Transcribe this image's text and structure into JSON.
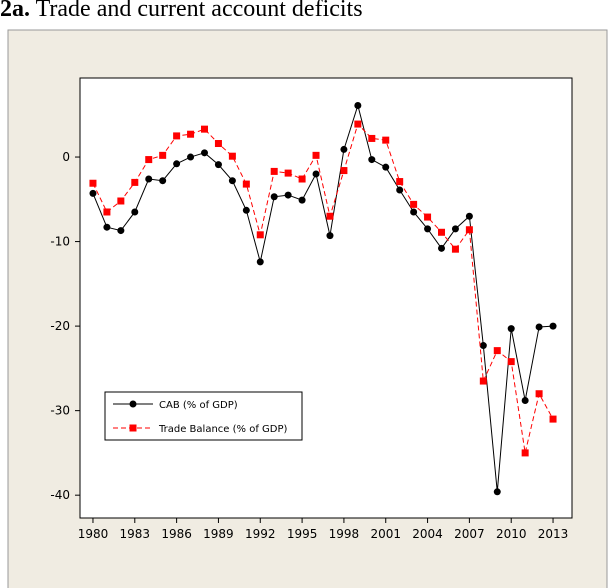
{
  "chart_data": {
    "type": "line",
    "title_prefix": "2a.",
    "title": "Trade and current account deficits",
    "x": [
      1980,
      1981,
      1982,
      1983,
      1984,
      1985,
      1986,
      1987,
      1988,
      1989,
      1990,
      1991,
      1992,
      1993,
      1994,
      1995,
      1996,
      1997,
      1998,
      1999,
      2000,
      2001,
      2002,
      2003,
      2004,
      2005,
      2006,
      2007,
      2008,
      2009,
      2010,
      2011,
      2012,
      2013
    ],
    "series": [
      {
        "name": "CAB (% of GDP)",
        "color": "#000000",
        "marker": "circle",
        "dashed": false,
        "values": [
          -4.3,
          -8.3,
          -8.7,
          -6.5,
          -2.6,
          -2.8,
          -0.8,
          0.0,
          0.5,
          -0.9,
          -2.8,
          -6.3,
          -12.4,
          -4.7,
          -4.5,
          -5.1,
          -2.0,
          -9.3,
          0.9,
          6.1,
          -0.3,
          -1.2,
          -3.9,
          -6.5,
          -8.5,
          -10.8,
          -8.5,
          -7.0,
          -22.3,
          -39.6,
          -20.3,
          -28.8,
          -20.1,
          -20.0
        ]
      },
      {
        "name": "Trade Balance (% of GDP)",
        "color": "#ff0000",
        "marker": "square",
        "dashed": true,
        "values": [
          -3.1,
          -6.5,
          -5.2,
          -3.0,
          -0.3,
          0.2,
          2.5,
          2.7,
          3.3,
          1.6,
          0.1,
          -3.2,
          -9.2,
          -1.7,
          -1.9,
          -2.6,
          0.2,
          -7.0,
          -1.6,
          3.9,
          2.2,
          2.0,
          -2.9,
          -5.6,
          -7.1,
          -8.9,
          -10.9,
          -8.6,
          -26.5,
          -22.9,
          -24.2,
          -35.0,
          -28.0,
          -31.0
        ]
      }
    ],
    "xlim": [
      1979.07,
      2014.36
    ],
    "xticks": [
      1980,
      1983,
      1986,
      1989,
      1992,
      1995,
      1998,
      2001,
      2004,
      2007,
      2010,
      2013
    ],
    "ylim": [
      -42.7,
      9.35
    ],
    "yticks": [
      0,
      -10,
      -20,
      -30,
      -40
    ],
    "legend": "lower-left"
  }
}
